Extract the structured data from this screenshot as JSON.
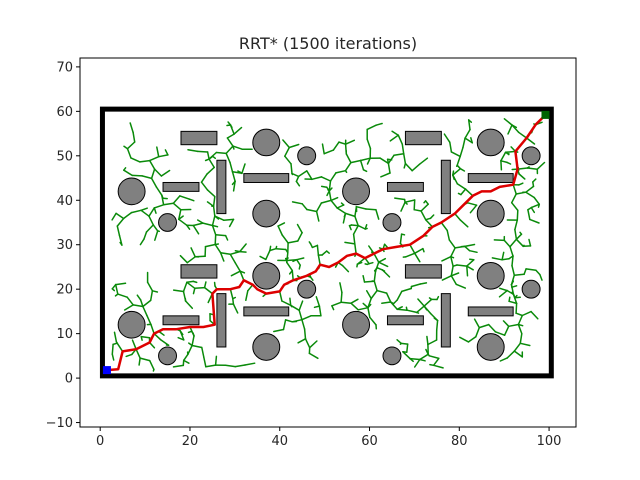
{
  "chart_data": {
    "type": "path-planning-plot",
    "title": "RRT* (1500 iterations)",
    "xlim": [
      -4.5,
      106
    ],
    "ylim": [
      -11,
      72
    ],
    "x_ticks": [
      0,
      20,
      40,
      60,
      80,
      100
    ],
    "y_ticks": [
      -10,
      0,
      10,
      20,
      30,
      40,
      50,
      60,
      70
    ],
    "grid": false,
    "boundary": {
      "x": [
        0.5,
        100.5
      ],
      "y": [
        0.5,
        60.5
      ]
    },
    "start": {
      "x": 1.5,
      "y": 1.8,
      "color": "#0000ff"
    },
    "goal": {
      "x": 99.2,
      "y": 59.2,
      "color": "#006400"
    },
    "colors": {
      "tree": "#0a8a0a",
      "path": "#dd0000",
      "obstacle": "#808080",
      "boundary": "#000000"
    },
    "circle_obstacles": [
      {
        "x": 7,
        "y": 42,
        "r": 3
      },
      {
        "x": 15,
        "y": 35,
        "r": 2
      },
      {
        "x": 37,
        "y": 53,
        "r": 3
      },
      {
        "x": 46,
        "y": 50,
        "r": 2
      },
      {
        "x": 37,
        "y": 37,
        "r": 3
      },
      {
        "x": 57,
        "y": 42,
        "r": 3
      },
      {
        "x": 65,
        "y": 35,
        "r": 2
      },
      {
        "x": 87,
        "y": 53,
        "r": 3
      },
      {
        "x": 96,
        "y": 50,
        "r": 2
      },
      {
        "x": 87,
        "y": 37,
        "r": 3
      },
      {
        "x": 7,
        "y": 12,
        "r": 3
      },
      {
        "x": 15,
        "y": 5,
        "r": 2
      },
      {
        "x": 37,
        "y": 23,
        "r": 3
      },
      {
        "x": 46,
        "y": 20,
        "r": 2
      },
      {
        "x": 37,
        "y": 7,
        "r": 3
      },
      {
        "x": 57,
        "y": 12,
        "r": 3
      },
      {
        "x": 65,
        "y": 5,
        "r": 2
      },
      {
        "x": 87,
        "y": 23,
        "r": 3
      },
      {
        "x": 96,
        "y": 20,
        "r": 2
      },
      {
        "x": 87,
        "y": 7,
        "r": 3
      }
    ],
    "rect_obstacles": [
      {
        "x": 18,
        "y": 52.5,
        "w": 8,
        "h": 3
      },
      {
        "x": 14,
        "y": 42,
        "w": 8,
        "h": 2
      },
      {
        "x": 26,
        "y": 37,
        "w": 2,
        "h": 12
      },
      {
        "x": 32,
        "y": 44,
        "w": 10,
        "h": 2
      },
      {
        "x": 68,
        "y": 52.5,
        "w": 8,
        "h": 3
      },
      {
        "x": 64,
        "y": 42,
        "w": 8,
        "h": 2
      },
      {
        "x": 76,
        "y": 37,
        "w": 2,
        "h": 12
      },
      {
        "x": 82,
        "y": 44,
        "w": 10,
        "h": 2
      },
      {
        "x": 18,
        "y": 22.5,
        "w": 8,
        "h": 3
      },
      {
        "x": 14,
        "y": 12,
        "w": 8,
        "h": 2
      },
      {
        "x": 26,
        "y": 7,
        "w": 2,
        "h": 12
      },
      {
        "x": 32,
        "y": 14,
        "w": 10,
        "h": 2
      },
      {
        "x": 68,
        "y": 22.5,
        "w": 8,
        "h": 3
      },
      {
        "x": 64,
        "y": 12,
        "w": 8,
        "h": 2
      },
      {
        "x": 76,
        "y": 7,
        "w": 2,
        "h": 12
      },
      {
        "x": 82,
        "y": 14,
        "w": 10,
        "h": 2
      }
    ],
    "path": [
      [
        1.5,
        1.8
      ],
      [
        4,
        2
      ],
      [
        5,
        6
      ],
      [
        8,
        6.5
      ],
      [
        11,
        8
      ],
      [
        12,
        10
      ],
      [
        14,
        11
      ],
      [
        17,
        11
      ],
      [
        20,
        11.5
      ],
      [
        23,
        11.5
      ],
      [
        25.5,
        12
      ],
      [
        25,
        19
      ],
      [
        26,
        20
      ],
      [
        29,
        20
      ],
      [
        31,
        20.5
      ],
      [
        32,
        22
      ],
      [
        34,
        21
      ],
      [
        35,
        20
      ],
      [
        37,
        19
      ],
      [
        40,
        19.5
      ],
      [
        41,
        21
      ],
      [
        43,
        22
      ],
      [
        46,
        23
      ],
      [
        48,
        24
      ],
      [
        49,
        25.5
      ],
      [
        51,
        25
      ],
      [
        53,
        26
      ],
      [
        55,
        27.5
      ],
      [
        57,
        28
      ],
      [
        59,
        27
      ],
      [
        61,
        28
      ],
      [
        63,
        29
      ],
      [
        66,
        29.5
      ],
      [
        69,
        30
      ],
      [
        72,
        32
      ],
      [
        74,
        34
      ],
      [
        76,
        35
      ],
      [
        79,
        37
      ],
      [
        81,
        39
      ],
      [
        83,
        41
      ],
      [
        85,
        42
      ],
      [
        87,
        42
      ],
      [
        89,
        43
      ],
      [
        92,
        43.5
      ],
      [
        93,
        47
      ],
      [
        92.5,
        51
      ],
      [
        95,
        54
      ],
      [
        97,
        57
      ],
      [
        99.2,
        59.2
      ]
    ]
  }
}
